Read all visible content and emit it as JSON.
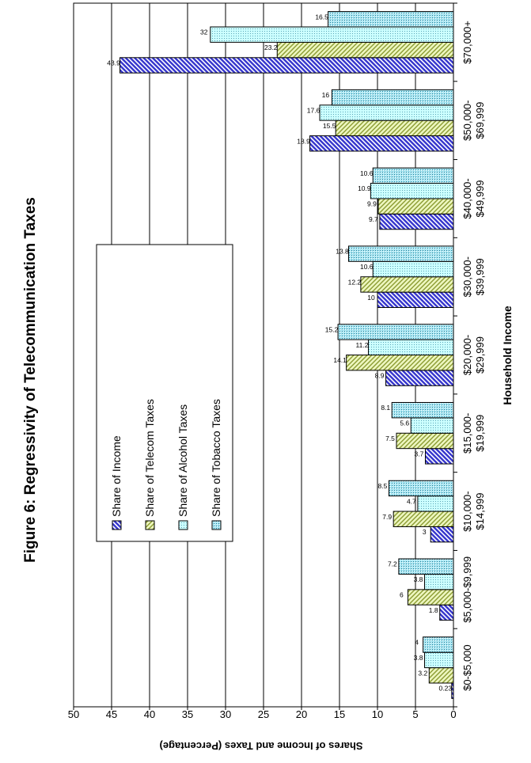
{
  "chart_data": {
    "type": "bar",
    "orientation": "rotated-90",
    "title": "Figure 6: Regressivity of Telecommunication Taxes",
    "xlabel": "Household Income",
    "ylabel": "Shares of Income and Taxes (Percentage)",
    "ylim": [
      0,
      50
    ],
    "yticks": [
      0,
      5,
      10,
      15,
      20,
      25,
      30,
      35,
      40,
      45,
      50
    ],
    "grid": true,
    "legend_position": "left",
    "categories": [
      "$0-$5,000",
      "$5,000-$9,999",
      "$10,000-\n$14,999",
      "$15,000-\n$19,999",
      "$20,000-\n$29,999",
      "$30,000-\n$39,999",
      "$40,000-\n$49,999",
      "$50,000-\n$69,999",
      "$70,000+"
    ],
    "series": [
      {
        "name": "Share of Income",
        "values": [
          0.23,
          1.8,
          3,
          3.7,
          8.9,
          10,
          9.7,
          18.9,
          43.9
        ],
        "labels": [
          "0.23",
          "1.8",
          "3",
          "3.7",
          "8.9",
          "10",
          "9.7",
          "18.9",
          "43.9"
        ]
      },
      {
        "name": "Share of Telecom Taxes",
        "values": [
          3.2,
          6,
          7.9,
          7.5,
          14.1,
          12.2,
          9.9,
          15.5,
          23.2
        ],
        "labels": [
          "3.2",
          "6",
          "7.9",
          "7.5",
          "14.1",
          "12.2",
          "9.9",
          "15.5",
          "23.2"
        ]
      },
      {
        "name": "Share of Alcohol Taxes",
        "values": [
          3.8,
          3.8,
          4.7,
          5.6,
          11.2,
          10.6,
          10.9,
          17.6,
          32
        ],
        "labels": [
          "3.8",
          "3.8",
          "4.7",
          "5.6",
          "11.2",
          "10.6",
          "10.9",
          "17.6",
          "32"
        ]
      },
      {
        "name": "Share of Tobacco Taxes",
        "values": [
          4,
          7.2,
          8.5,
          8.1,
          15.2,
          13.8,
          10.6,
          16,
          16.5
        ],
        "labels": [
          "4",
          "7.2",
          "8.5",
          "8.1",
          "15.2",
          "13.8",
          "10.6",
          "16",
          "16.5"
        ]
      }
    ],
    "colors": {
      "income": "#3333cc",
      "telecom": "#ccee88",
      "alcohol": "#ccffff",
      "tobacco": "#99ddee",
      "grid": "#000000"
    }
  }
}
